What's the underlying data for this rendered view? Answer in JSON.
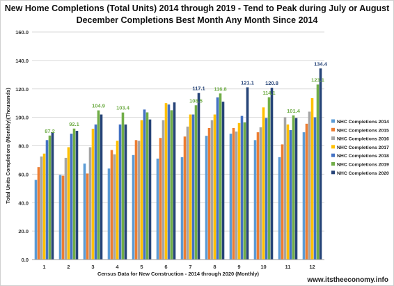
{
  "title_line1": "New Home Completions (Total Units) 2014 through 2019 - Tend to Peak during July or August",
  "title_line2": "December Completions Best Month Any Month Since 2014",
  "credit": "www.itstheeconomy.info",
  "chart_data": {
    "type": "bar",
    "xlabel": "Census Data for New Construction - 2014 through 2020 (Monthly)",
    "ylabel": "Total Units Completions (Monthly)(Thousands)",
    "ylim": [
      0,
      160
    ],
    "ytick_step": 20,
    "ytick_labels": [
      "0.0",
      "20.0",
      "40.0",
      "60.0",
      "80.0",
      "100.0",
      "120.0",
      "140.0",
      "160.0"
    ],
    "categories": [
      "1",
      "2",
      "3",
      "4",
      "5",
      "6",
      "7",
      "8",
      "9",
      "10",
      "11",
      "12"
    ],
    "grid": true,
    "legend_position": "right",
    "series": [
      {
        "name": "NHC Completions 2014",
        "color": "#5b9bd5",
        "values": [
          56.0,
          59.5,
          67.5,
          64.0,
          73.5,
          71.0,
          72.0,
          87.0,
          88.5,
          84.0,
          72.0,
          89.5
        ]
      },
      {
        "name": "NHC Completions 2015",
        "color": "#ed7d31",
        "values": [
          65.0,
          59.0,
          60.5,
          77.0,
          84.0,
          85.5,
          86.5,
          92.5,
          92.5,
          89.5,
          81.0,
          95.5
        ]
      },
      {
        "name": "NHC Completions 2016",
        "color": "#a5a5a5",
        "values": [
          72.5,
          71.5,
          79.0,
          74.0,
          83.5,
          98.0,
          93.5,
          98.0,
          90.0,
          93.0,
          100.0,
          104.0
        ]
      },
      {
        "name": "NHC Completions 2017",
        "color": "#ffc000",
        "values": [
          74.5,
          79.0,
          92.0,
          83.5,
          98.0,
          110.0,
          102.0,
          102.0,
          96.0,
          107.0,
          95.0,
          113.5
        ]
      },
      {
        "name": "NHC Completions 2018",
        "color": "#4472c4",
        "values": [
          84.0,
          88.5,
          95.0,
          95.0,
          105.5,
          109.0,
          102.0,
          114.0,
          101.0,
          99.5,
          91.0,
          100.0
        ]
      },
      {
        "name": "NHC Completions 2019",
        "color": "#70ad47",
        "values": [
          87.2,
          92.1,
          104.9,
          103.4,
          103.5,
          105.0,
          108.5,
          116.8,
          96.5,
          114.1,
          101.4,
          123.1
        ]
      },
      {
        "name": "NHC Completions 2020",
        "color": "#264478",
        "values": [
          89.5,
          90.5,
          102.0,
          95.0,
          98.5,
          110.5,
          117.1,
          111.0,
          121.1,
          120.8,
          99.5,
          134.4
        ]
      }
    ],
    "data_labels": [
      {
        "category": "1",
        "series": "NHC Completions 2019",
        "text": "87.2"
      },
      {
        "category": "2",
        "series": "NHC Completions 2019",
        "text": "92.1"
      },
      {
        "category": "3",
        "series": "NHC Completions 2019",
        "text": "104.9"
      },
      {
        "category": "4",
        "series": "NHC Completions 2019",
        "text": "103.4"
      },
      {
        "category": "7",
        "series": "NHC Completions 2019",
        "text": "108.5"
      },
      {
        "category": "7",
        "series": "NHC Completions 2020",
        "text": "117.1"
      },
      {
        "category": "8",
        "series": "NHC Completions 2019",
        "text": "116.8"
      },
      {
        "category": "9",
        "series": "NHC Completions 2020",
        "text": "121.1"
      },
      {
        "category": "10",
        "series": "NHC Completions 2019",
        "text": "114.1"
      },
      {
        "category": "10",
        "series": "NHC Completions 2020",
        "text": "120.8"
      },
      {
        "category": "11",
        "series": "NHC Completions 2019",
        "text": "101.4"
      },
      {
        "category": "12",
        "series": "NHC Completions 2019",
        "text": "123.1"
      },
      {
        "category": "12",
        "series": "NHC Completions 2020",
        "text": "134.4"
      }
    ]
  }
}
